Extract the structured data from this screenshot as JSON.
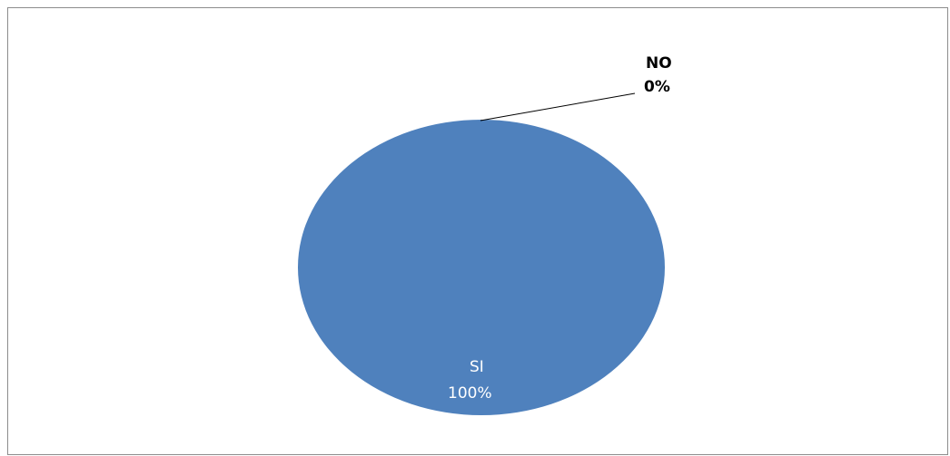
{
  "chart_data": {
    "type": "pie",
    "categories": [
      "SI",
      "NO"
    ],
    "values": [
      100,
      0
    ],
    "labels": [
      {
        "name": "SI",
        "percent": "100%"
      },
      {
        "name": "NO",
        "percent": "0%"
      }
    ],
    "colors": [
      "#4f81bd",
      "#c0504d"
    ],
    "legend": "none",
    "title": ""
  }
}
